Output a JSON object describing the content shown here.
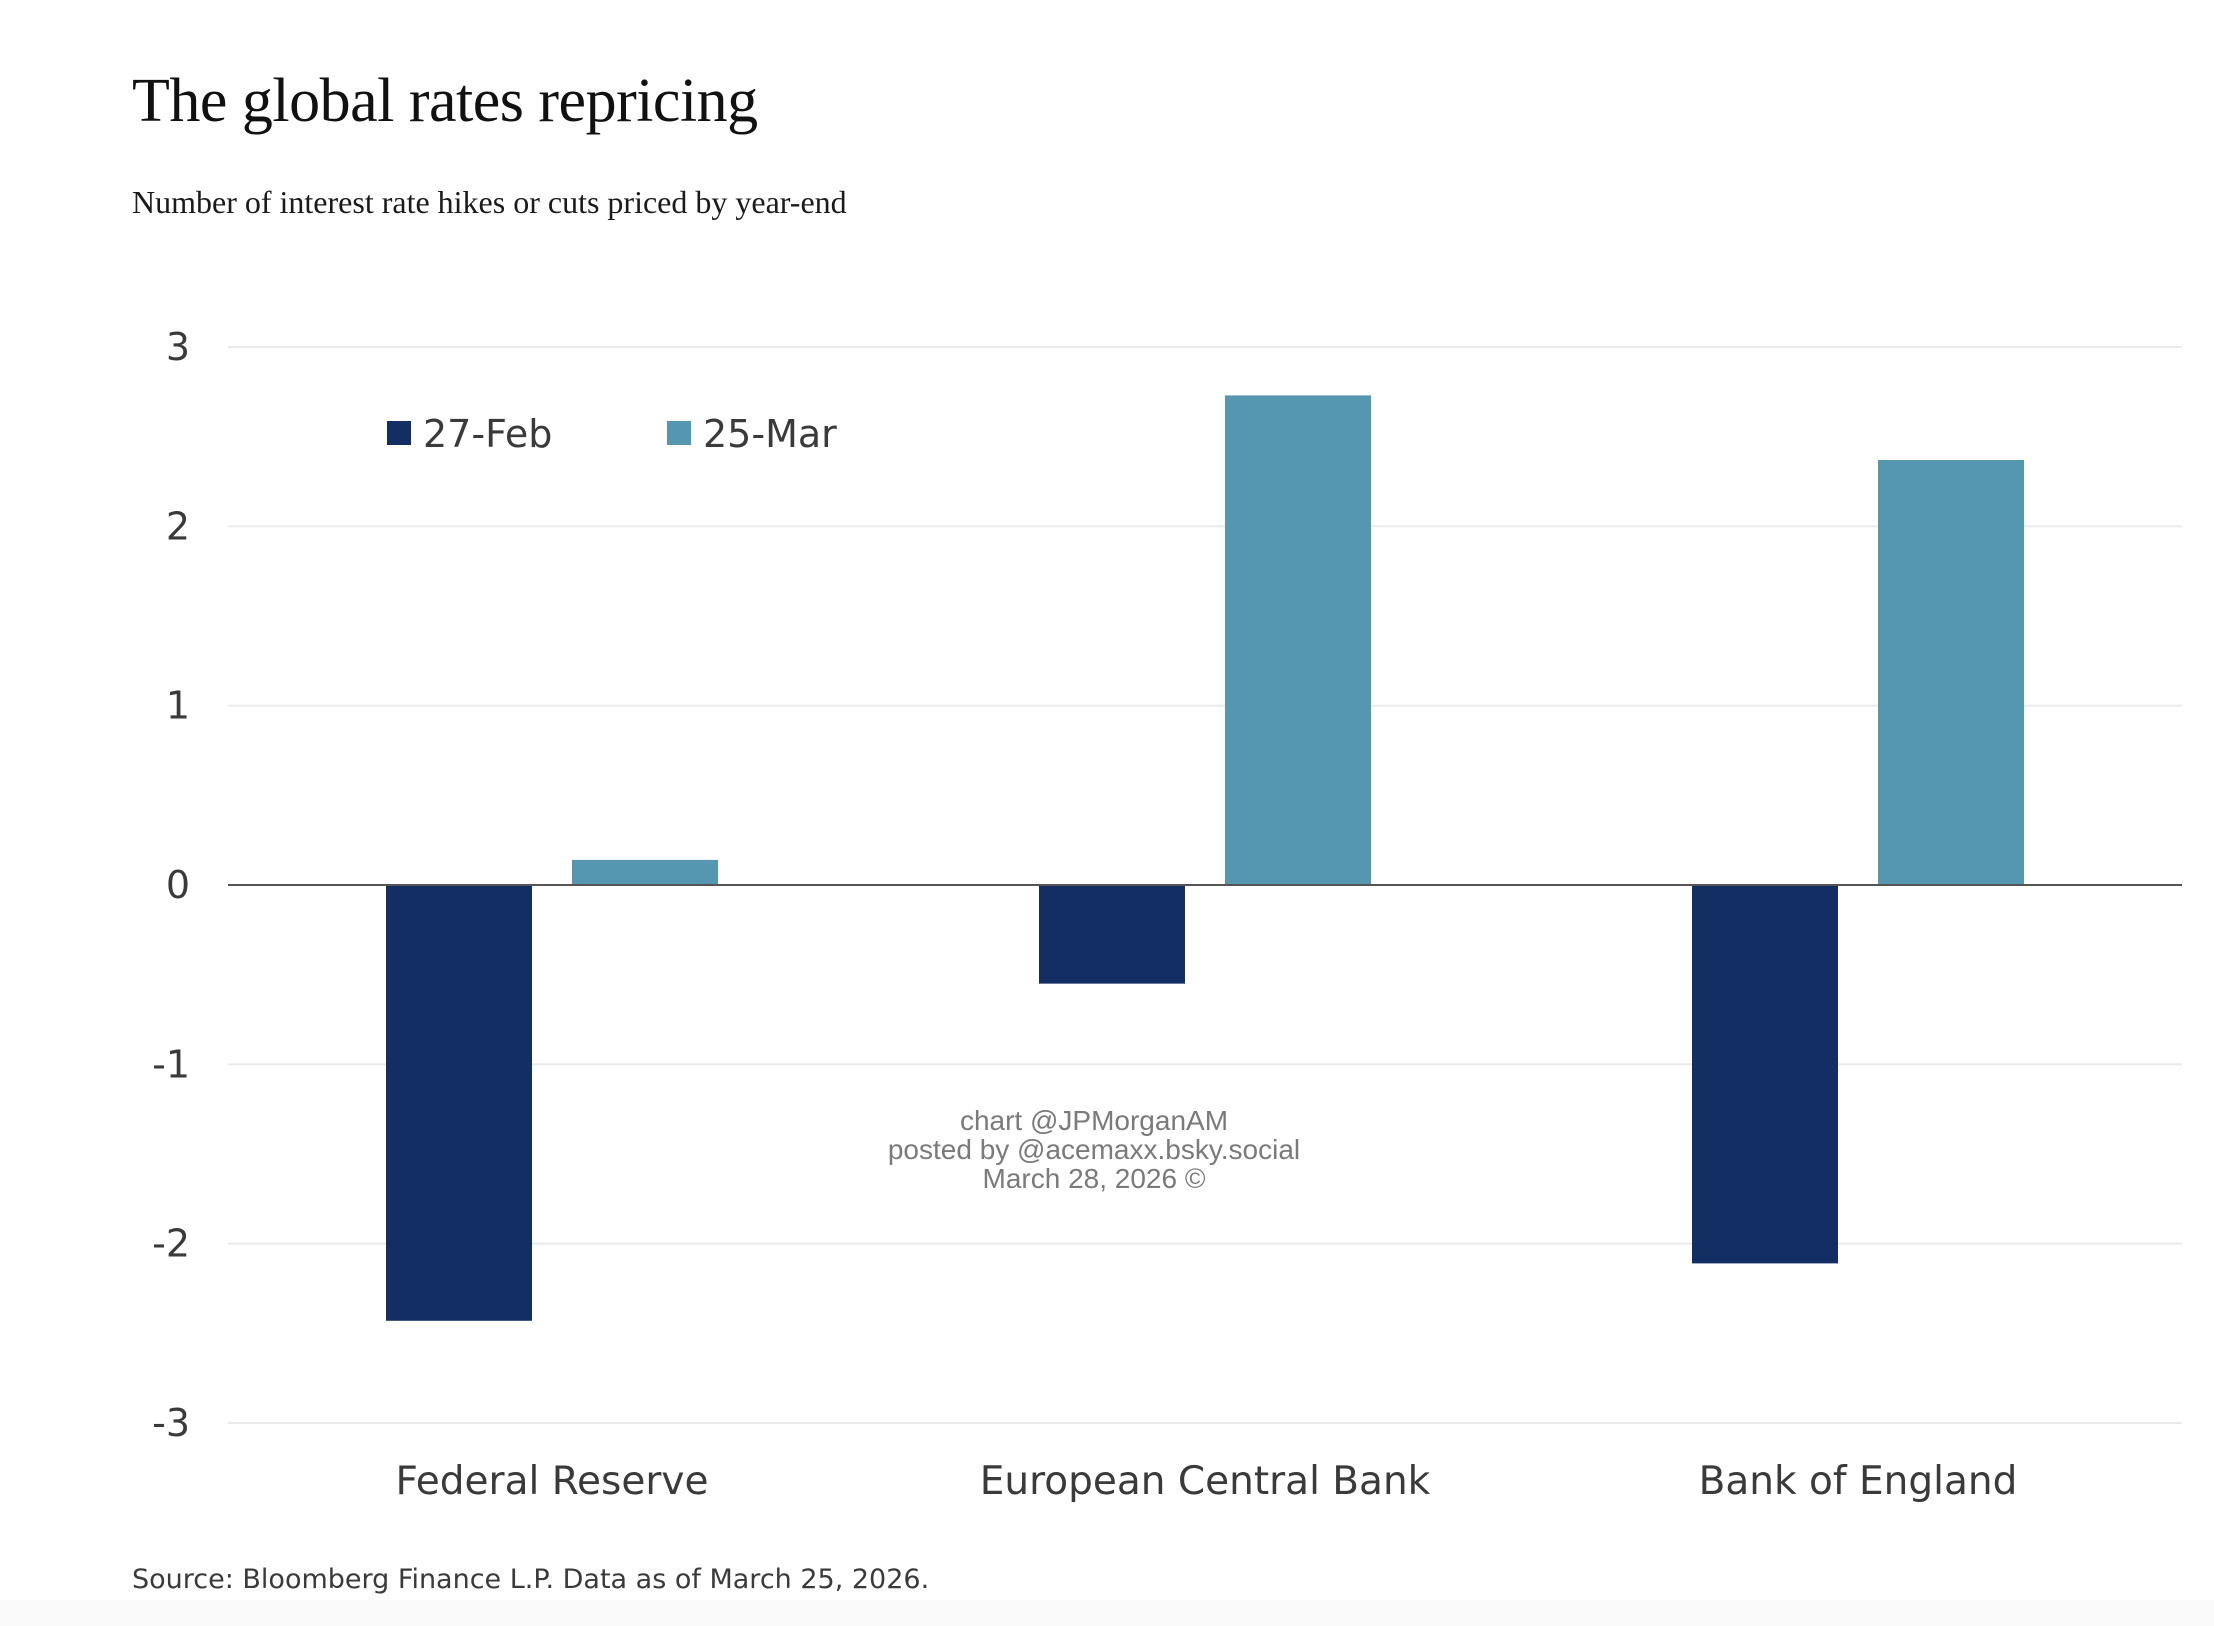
{
  "header": {
    "title": "The global rates repricing",
    "subtitle": "Number of interest rate hikes or cuts priced by year-end"
  },
  "footer": {
    "source": "Source: Bloomberg Finance L.P. Data as of March 25, 2026."
  },
  "watermark": {
    "lines": [
      "chart @JPMorganAM",
      "posted by @acemaxx.bsky.social",
      "March 28, 2026 ©"
    ]
  },
  "colors": {
    "feb": "#132e63",
    "mar": "#5597b0",
    "grid": "#ebebeb",
    "zero_line": "#555555"
  },
  "chart_data": {
    "type": "bar",
    "title": "The global rates repricing",
    "subtitle": "Number of interest rate hikes or cuts priced by year-end",
    "xlabel": "",
    "ylabel": "",
    "categories": [
      "Federal Reserve",
      "European Central Bank",
      "Bank of England"
    ],
    "series": [
      {
        "name": "27-Feb",
        "values": [
          -2.43,
          -0.55,
          -2.11
        ]
      },
      {
        "name": "25-Mar",
        "values": [
          0.14,
          2.73,
          2.37
        ]
      }
    ],
    "ylim": [
      -3,
      3
    ],
    "yticks": [
      3,
      2,
      1,
      0,
      -1,
      -2,
      -3
    ],
    "ytick_labels": [
      "3",
      "2",
      "1",
      "0",
      "-1",
      "-2",
      "-3"
    ],
    "grid": true,
    "legend": {
      "placement": "top-left",
      "entries": [
        "27-Feb",
        "25-Mar"
      ]
    },
    "source": "Source: Bloomberg Finance L.P. Data as of March 25, 2026."
  }
}
